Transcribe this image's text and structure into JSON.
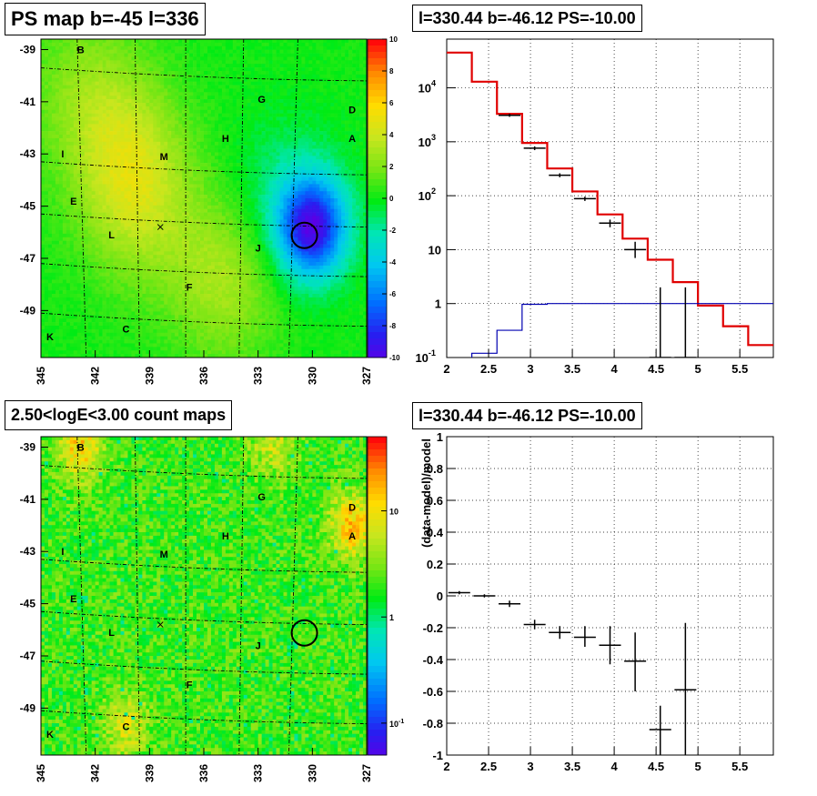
{
  "chart_data": [
    {
      "type": "heatmap",
      "title": "PS map b=-45 l=336",
      "x_ticks": [
        "345",
        "342",
        "339",
        "336",
        "333",
        "330",
        "327"
      ],
      "y_ticks": [
        "-39",
        "-41",
        "-43",
        "-45",
        "-47",
        "-49"
      ],
      "xlim": [
        345,
        327
      ],
      "ylim": [
        -50.8,
        -38.6
      ],
      "colorbar": {
        "scale": "linear",
        "range": [
          -10,
          10
        ],
        "ticks": [
          "10",
          "8",
          "6",
          "4",
          "2",
          "0",
          "-2",
          "-4",
          "-6",
          "-8",
          "-10"
        ]
      },
      "labels": [
        {
          "text": "B",
          "l": 342.8,
          "b": -39.0
        },
        {
          "text": "G",
          "l": 332.8,
          "b": -40.9
        },
        {
          "text": "D",
          "l": 327.8,
          "b": -41.3
        },
        {
          "text": "A",
          "l": 327.8,
          "b": -42.4
        },
        {
          "text": "H",
          "l": 334.8,
          "b": -42.4
        },
        {
          "text": "M",
          "l": 338.2,
          "b": -43.1
        },
        {
          "text": "I",
          "l": 343.8,
          "b": -43.0
        },
        {
          "text": "E",
          "l": 343.2,
          "b": -44.8
        },
        {
          "text": "L",
          "l": 341.1,
          "b": -46.1
        },
        {
          "text": "J",
          "l": 333.0,
          "b": -46.6
        },
        {
          "text": "F",
          "l": 336.8,
          "b": -48.1
        },
        {
          "text": "C",
          "l": 340.3,
          "b": -49.7
        },
        {
          "text": "K",
          "l": 344.5,
          "b": -50.0
        }
      ],
      "source_circle": {
        "l": 330.44,
        "b": -46.12
      },
      "cross_marker": {
        "l": 338.4,
        "b": -45.8
      },
      "features": [
        {
          "kind": "deficit",
          "l": 330.0,
          "b": -45.8,
          "value": -9
        },
        {
          "kind": "deficit",
          "l": 331.5,
          "b": -45.0,
          "value": -2
        },
        {
          "kind": "excess",
          "l": 334.8,
          "b": -47.7,
          "value": 3
        },
        {
          "kind": "excess",
          "l": 340.2,
          "b": -43.2,
          "value": 3
        },
        {
          "kind": "excess",
          "l": 342.5,
          "b": -40.5,
          "value": 2
        },
        {
          "kind": "excess",
          "l": 339.5,
          "b": -45.3,
          "value": 2
        }
      ]
    },
    {
      "type": "line",
      "title": "l=330.44 b=-46.12 PS=-10.00",
      "x_ticks": [
        "2",
        "2.5",
        "3",
        "3.5",
        "4",
        "4.5",
        "5",
        "5.5"
      ],
      "xlim": [
        2,
        5.9
      ],
      "y_scale": "log",
      "ylim": [
        0.1,
        80000
      ],
      "y_ticks": [
        {
          "v": 0.1,
          "label": "10",
          "sup": "-1"
        },
        {
          "v": 1,
          "label": "1",
          "sup": ""
        },
        {
          "v": 10,
          "label": "10",
          "sup": ""
        },
        {
          "v": 100,
          "label": "10",
          "sup": "2"
        },
        {
          "v": 1000,
          "label": "10",
          "sup": "3"
        },
        {
          "v": 10000,
          "label": "10",
          "sup": "4"
        }
      ],
      "series": [
        {
          "kind": "model-step",
          "color": "#e00000",
          "edges": [
            2,
            2.3,
            2.6,
            2.9,
            3.2,
            3.5,
            3.8,
            4.1,
            4.4,
            4.7,
            5.0,
            5.3,
            5.6,
            5.9
          ],
          "values": [
            45000,
            13000,
            3300,
            950,
            320,
            120,
            45,
            16,
            6.5,
            2.5,
            0.92,
            0.38,
            0.17
          ]
        },
        {
          "kind": "ps-step",
          "color": "#0000b0",
          "edges": [
            2,
            2.3,
            2.6,
            2.9,
            3.2,
            3.5,
            3.8,
            4.1,
            4.4,
            4.7,
            5.0,
            5.3,
            5.6,
            5.9
          ],
          "values": [
            0.05,
            0.12,
            0.32,
            0.97,
            1.0,
            1.0,
            1.0,
            1.0,
            1.0,
            1.0,
            1.0,
            1.0,
            1.0
          ]
        },
        {
          "kind": "data",
          "x": [
            2.75,
            3.05,
            3.35,
            3.65,
            3.95,
            4.25,
            4.55,
            4.85
          ],
          "y": [
            3100,
            760,
            240,
            88,
            31,
            10,
            0.1,
            0.1
          ],
          "ylo": [
            2900,
            700,
            220,
            80,
            26,
            7,
            0.1,
            0.1
          ],
          "yhi": [
            3300,
            820,
            260,
            96,
            36,
            14,
            2.0,
            2.0
          ]
        }
      ]
    },
    {
      "type": "heatmap",
      "title": "2.50<logE<3.00 count maps",
      "x_ticks": [
        "345",
        "342",
        "339",
        "336",
        "333",
        "330",
        "327"
      ],
      "y_ticks": [
        "-39",
        "-41",
        "-43",
        "-45",
        "-47",
        "-49"
      ],
      "xlim": [
        345,
        327
      ],
      "ylim": [
        -50.8,
        -38.6
      ],
      "colorbar": {
        "scale": "log",
        "range": [
          0.05,
          50
        ],
        "ticks": [
          {
            "v": 10,
            "label": "10",
            "sup": ""
          },
          {
            "v": 1,
            "label": "1",
            "sup": ""
          },
          {
            "v": 0.1,
            "label": "10",
            "sup": "-1"
          }
        ]
      },
      "labels": [
        {
          "text": "B",
          "l": 342.8,
          "b": -39.0
        },
        {
          "text": "G",
          "l": 332.8,
          "b": -40.9
        },
        {
          "text": "D",
          "l": 327.8,
          "b": -41.3
        },
        {
          "text": "A",
          "l": 327.8,
          "b": -42.4
        },
        {
          "text": "H",
          "l": 334.8,
          "b": -42.4
        },
        {
          "text": "M",
          "l": 338.2,
          "b": -43.1
        },
        {
          "text": "I",
          "l": 343.8,
          "b": -43.0
        },
        {
          "text": "E",
          "l": 343.2,
          "b": -44.8
        },
        {
          "text": "L",
          "l": 341.1,
          "b": -46.1
        },
        {
          "text": "J",
          "l": 333.0,
          "b": -46.6
        },
        {
          "text": "F",
          "l": 336.8,
          "b": -48.1
        },
        {
          "text": "C",
          "l": 340.3,
          "b": -49.7
        },
        {
          "text": "K",
          "l": 344.5,
          "b": -50.0
        }
      ],
      "source_circle": {
        "l": 330.44,
        "b": -46.12
      },
      "cross_marker": {
        "l": 338.4,
        "b": -45.8
      },
      "features": [
        {
          "kind": "bright",
          "l": 342.8,
          "b": -39.0,
          "value": 20
        },
        {
          "kind": "bright",
          "l": 332.2,
          "b": -38.9,
          "value": 8
        },
        {
          "kind": "bright",
          "l": 327.8,
          "b": -42.0,
          "value": 25
        },
        {
          "kind": "bright",
          "l": 340.3,
          "b": -49.6,
          "value": 10
        }
      ]
    },
    {
      "type": "line",
      "title": "l=330.44 b=-46.12 PS=-10.00",
      "x_ticks": [
        "2",
        "2.5",
        "3",
        "3.5",
        "4",
        "4.5",
        "5",
        "5.5"
      ],
      "xlim": [
        2,
        5.9
      ],
      "ylabel": "(data-model)/model",
      "ylim": [
        -1,
        1
      ],
      "y_ticks": [
        "1",
        "0.8",
        "0.6",
        "0.4",
        "0.2",
        "0",
        "-0.2",
        "-0.4",
        "-0.6",
        "-0.8",
        "-1"
      ],
      "series": [
        {
          "kind": "residuals",
          "x": [
            2.15,
            2.45,
            2.75,
            3.05,
            3.35,
            3.65,
            3.95,
            4.25,
            4.55,
            4.85
          ],
          "y": [
            0.02,
            0.0,
            -0.05,
            -0.18,
            -0.23,
            -0.26,
            -0.31,
            -0.41,
            -0.84,
            -0.59
          ],
          "ylo": [
            0.01,
            -0.01,
            -0.07,
            -0.21,
            -0.27,
            -0.32,
            -0.43,
            -0.6,
            -1.0,
            -1.0
          ],
          "yhi": [
            0.03,
            0.01,
            -0.03,
            -0.15,
            -0.19,
            -0.19,
            -0.19,
            -0.23,
            -0.69,
            -0.17
          ]
        }
      ]
    }
  ]
}
